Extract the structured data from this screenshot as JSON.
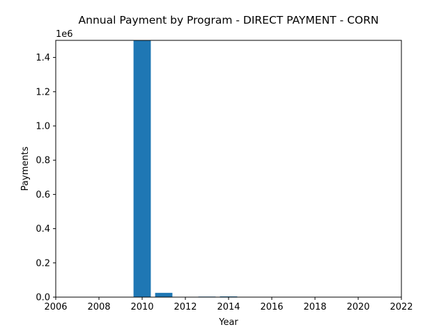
{
  "chart_data": {
    "type": "bar",
    "title": "Annual Payment by Program - DIRECT PAYMENT - CORN",
    "xlabel": "Year",
    "ylabel": "Payments",
    "y_offset_label": "1e6",
    "x": [
      2010,
      2011,
      2013,
      2014
    ],
    "values": [
      1500000,
      25000,
      3000,
      4000
    ],
    "bar_width": 0.8,
    "xlim": [
      2006,
      2022
    ],
    "ylim": [
      0,
      1.5
    ],
    "y_scale": 1000000,
    "xticks": [
      2006,
      2008,
      2010,
      2012,
      2014,
      2016,
      2018,
      2020,
      2022
    ],
    "yticks": [
      0.0,
      0.2,
      0.4,
      0.6,
      0.8,
      1.0,
      1.2,
      1.4
    ],
    "ytick_labels": [
      "0.0",
      "0.2",
      "0.4",
      "0.6",
      "0.8",
      "1.0",
      "1.2",
      "1.4"
    ],
    "bar_color": "#1f77b4",
    "grid": false,
    "legend": "none"
  }
}
